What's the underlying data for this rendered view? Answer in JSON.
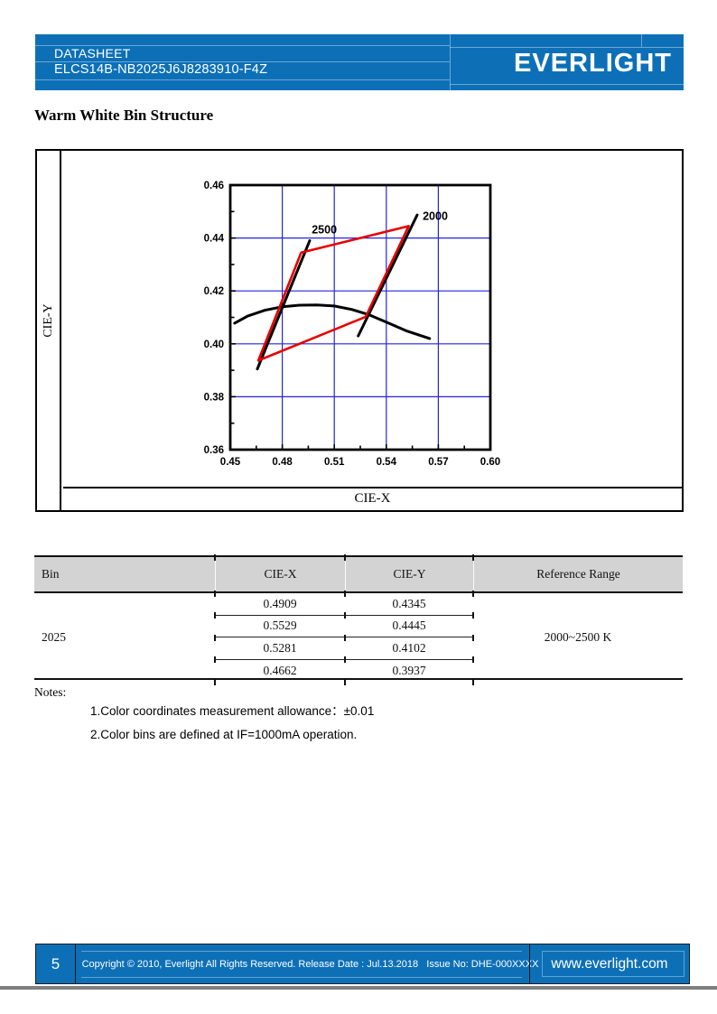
{
  "page": {
    "title": "Warm White Bin Structure"
  },
  "header": {
    "doc_type": "DATASHEET",
    "part_number": "ELCS14B-NB2025J6J8283910-F4Z",
    "logo_text": "EVERLIGHT",
    "brand_blue": "#0d70b7"
  },
  "chart_panel": {
    "x_axis_label": "CIE-X",
    "y_axis_label": "CIE-Y"
  },
  "chart_data": {
    "type": "line",
    "title": "Warm White Bin Structure",
    "xlabel": "CIE-X",
    "ylabel": "CIE-Y",
    "xlim": [
      0.45,
      0.6
    ],
    "ylim": [
      0.36,
      0.46
    ],
    "xticks": [
      0.45,
      0.48,
      0.51,
      0.54,
      0.57,
      0.6
    ],
    "yticks": [
      0.36,
      0.38,
      0.4,
      0.42,
      0.44,
      0.46
    ],
    "grid": true,
    "legend": "none",
    "colors": {
      "grid": "#2323e6",
      "bin_region": "#e60000",
      "lines": "#000000"
    },
    "series": [
      {
        "name": "bin-2025-region",
        "kind": "polygon",
        "color": "#e60000",
        "points": [
          [
            0.4909,
            0.4345
          ],
          [
            0.5529,
            0.4445
          ],
          [
            0.5281,
            0.4102
          ],
          [
            0.4662,
            0.3937
          ]
        ]
      },
      {
        "name": "isotherm-2500",
        "kind": "line",
        "color": "#000000",
        "label": "2500",
        "label_pos": [
          0.497,
          0.4418
        ],
        "points": [
          [
            0.4656,
            0.3905
          ],
          [
            0.4958,
            0.439
          ]
        ]
      },
      {
        "name": "isotherm-2000",
        "kind": "line",
        "color": "#000000",
        "label": "2000",
        "label_pos": [
          0.561,
          0.4468
        ],
        "points": [
          [
            0.5238,
            0.403
          ],
          [
            0.5578,
            0.4487
          ]
        ]
      },
      {
        "name": "blackbody-locus",
        "kind": "line",
        "color": "#000000",
        "points": [
          [
            0.4525,
            0.4078
          ],
          [
            0.46,
            0.4105
          ],
          [
            0.47,
            0.4127
          ],
          [
            0.48,
            0.414
          ],
          [
            0.49,
            0.4146
          ],
          [
            0.5,
            0.4147
          ],
          [
            0.51,
            0.4143
          ],
          [
            0.52,
            0.413
          ],
          [
            0.53,
            0.411
          ],
          [
            0.54,
            0.4082
          ],
          [
            0.552,
            0.4048
          ],
          [
            0.565,
            0.402
          ]
        ]
      }
    ]
  },
  "table": {
    "headers": [
      "Bin",
      "CIE-X",
      "CIE-Y",
      "Reference Range"
    ],
    "bin": "2025",
    "reference_range": "2000~2500 K",
    "rows": [
      [
        "0.4909",
        "0.4345"
      ],
      [
        "0.5529",
        "0.4445"
      ],
      [
        "0.5281",
        "0.4102"
      ],
      [
        "0.4662",
        "0.3937"
      ]
    ]
  },
  "notes": {
    "label": "Notes:",
    "items": [
      "1.Color coordinates measurement allowance：±0.01",
      "2.Color bins are defined at IF=1000mA operation."
    ]
  },
  "footer": {
    "page_number": "5",
    "copyright": "Copyright © 2010, Everlight All Rights Reserved. Release Date : Jul.13.2018   Issue No: DHE-000XXXX",
    "website": "www.everlight.com"
  }
}
